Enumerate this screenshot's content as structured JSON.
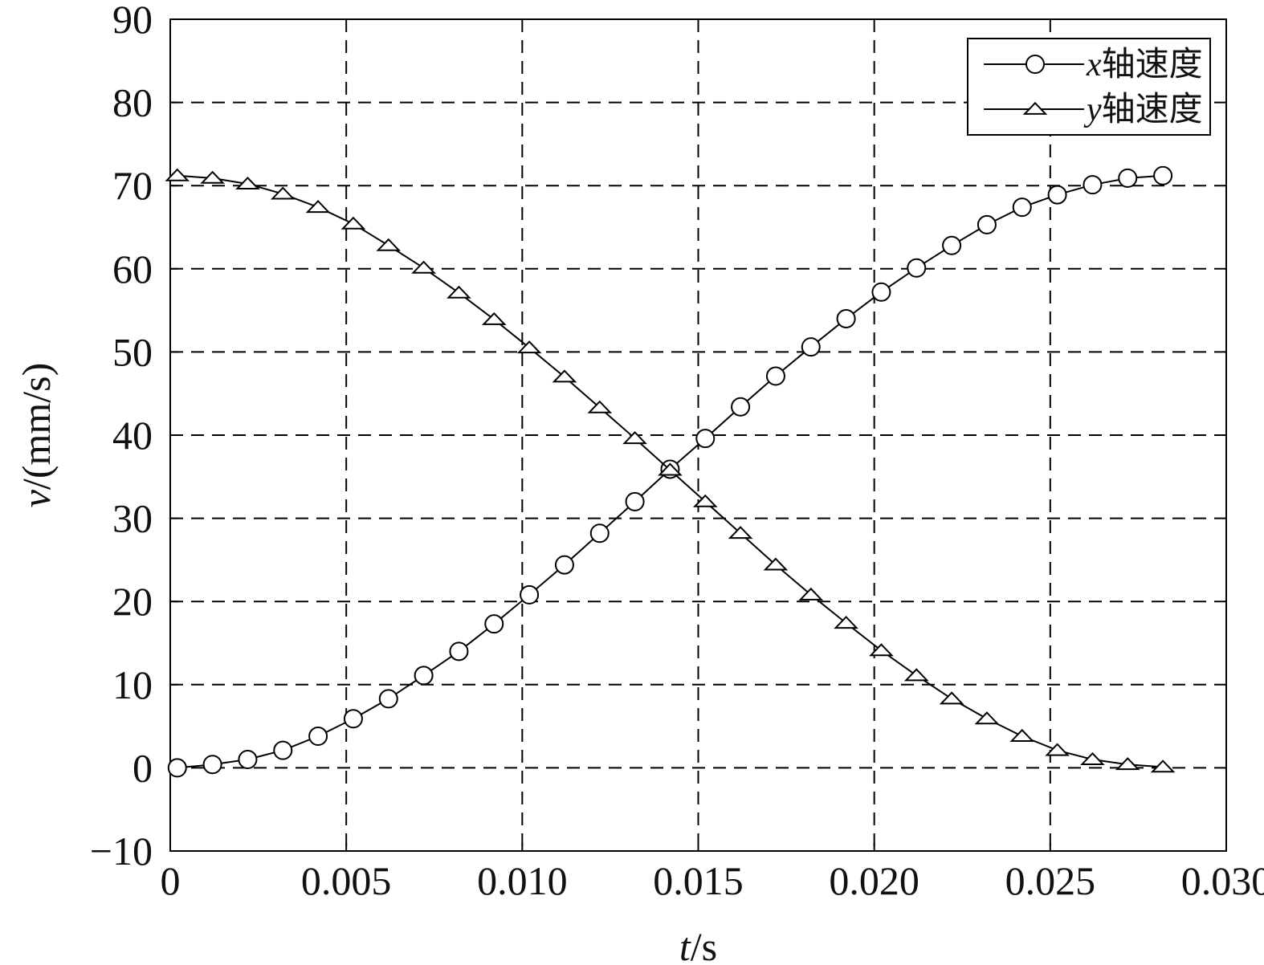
{
  "chart_data": {
    "type": "line",
    "xlabel": "t/s",
    "xlabel_italic_part": "t",
    "xlabel_rest": "/s",
    "ylabel": "v/(mm/s)",
    "ylabel_italic_part": "v",
    "ylabel_rest": "/(mm/s)",
    "xlim": [
      0,
      0.03
    ],
    "ylim": [
      -10,
      90
    ],
    "xticks": [
      0,
      0.005,
      0.01,
      0.015,
      0.02,
      0.025,
      0.03
    ],
    "xtick_labels": [
      "0",
      "0.005",
      "0.010",
      "0.015",
      "0.020",
      "0.025",
      "0.030"
    ],
    "yticks": [
      -10,
      0,
      10,
      20,
      30,
      40,
      50,
      60,
      70,
      80,
      90
    ],
    "ytick_labels": [
      "−10",
      "0",
      "10",
      "20",
      "30",
      "40",
      "50",
      "60",
      "70",
      "80",
      "90"
    ],
    "grid": true,
    "grid_style": "dashed",
    "legend_position": "top-right",
    "x": [
      0.0002,
      0.0012,
      0.0022,
      0.0032,
      0.0042,
      0.0052,
      0.0062,
      0.0072,
      0.0082,
      0.0092,
      0.0102,
      0.0112,
      0.0122,
      0.0132,
      0.0142,
      0.0152,
      0.0162,
      0.0172,
      0.0182,
      0.0192,
      0.0202,
      0.0212,
      0.0222,
      0.0232,
      0.0242,
      0.0252,
      0.0262,
      0.0272,
      0.0282
    ],
    "series": [
      {
        "name": "x轴速度",
        "name_italic_part": "x",
        "name_rest": "轴速度",
        "marker": "circle",
        "color": "#000000",
        "values": [
          0.0,
          0.4,
          1.0,
          2.1,
          3.8,
          5.9,
          8.3,
          11.1,
          14.0,
          17.3,
          20.8,
          24.4,
          28.2,
          32.0,
          35.9,
          39.6,
          43.4,
          47.1,
          50.6,
          54.0,
          57.2,
          60.1,
          62.8,
          65.3,
          67.4,
          68.9,
          70.1,
          70.9,
          71.2
        ]
      },
      {
        "name": "y轴速度",
        "name_italic_part": "y",
        "name_rest": "轴速度",
        "marker": "triangle",
        "color": "#000000",
        "values": [
          71.2,
          70.9,
          70.2,
          69.0,
          67.4,
          65.4,
          62.8,
          60.1,
          57.1,
          53.9,
          50.5,
          47.0,
          43.3,
          39.6,
          35.8,
          32.0,
          28.2,
          24.4,
          20.8,
          17.4,
          14.1,
          11.1,
          8.3,
          5.9,
          3.8,
          2.1,
          1.0,
          0.4,
          0.1
        ]
      }
    ]
  }
}
